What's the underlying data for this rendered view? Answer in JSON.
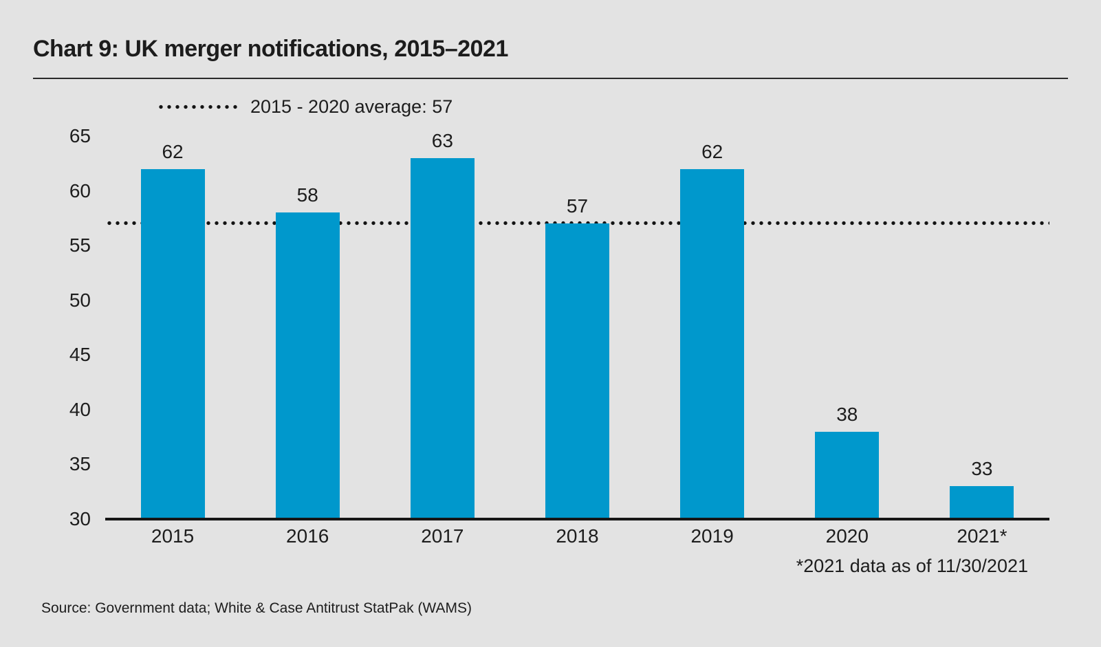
{
  "page": {
    "background": "#e3e3e3"
  },
  "chart_data": {
    "type": "bar",
    "title": "Chart 9: UK merger notifications, 2015–2021",
    "categories": [
      "2015",
      "2016",
      "2017",
      "2018",
      "2019",
      "2020",
      "2021*"
    ],
    "values": [
      62,
      58,
      63,
      57,
      62,
      38,
      33
    ],
    "average_line": {
      "label": "2015 - 2020 average: 57",
      "value": 57,
      "style": "dotted",
      "color": "#141414"
    },
    "ylim": [
      30,
      65
    ],
    "yticks": [
      30,
      35,
      40,
      45,
      50,
      55,
      60,
      65
    ],
    "xlabel": "",
    "ylabel": "",
    "grid": false,
    "legend_position": "top-left",
    "bar_color": "#0098cc",
    "axis_color": "#161616",
    "text_color": "#1d1d1d"
  },
  "footnote": "*2021 data as of 11/30/2021",
  "source": "Source: Government data; White & Case Antitrust StatPak (WAMS)"
}
